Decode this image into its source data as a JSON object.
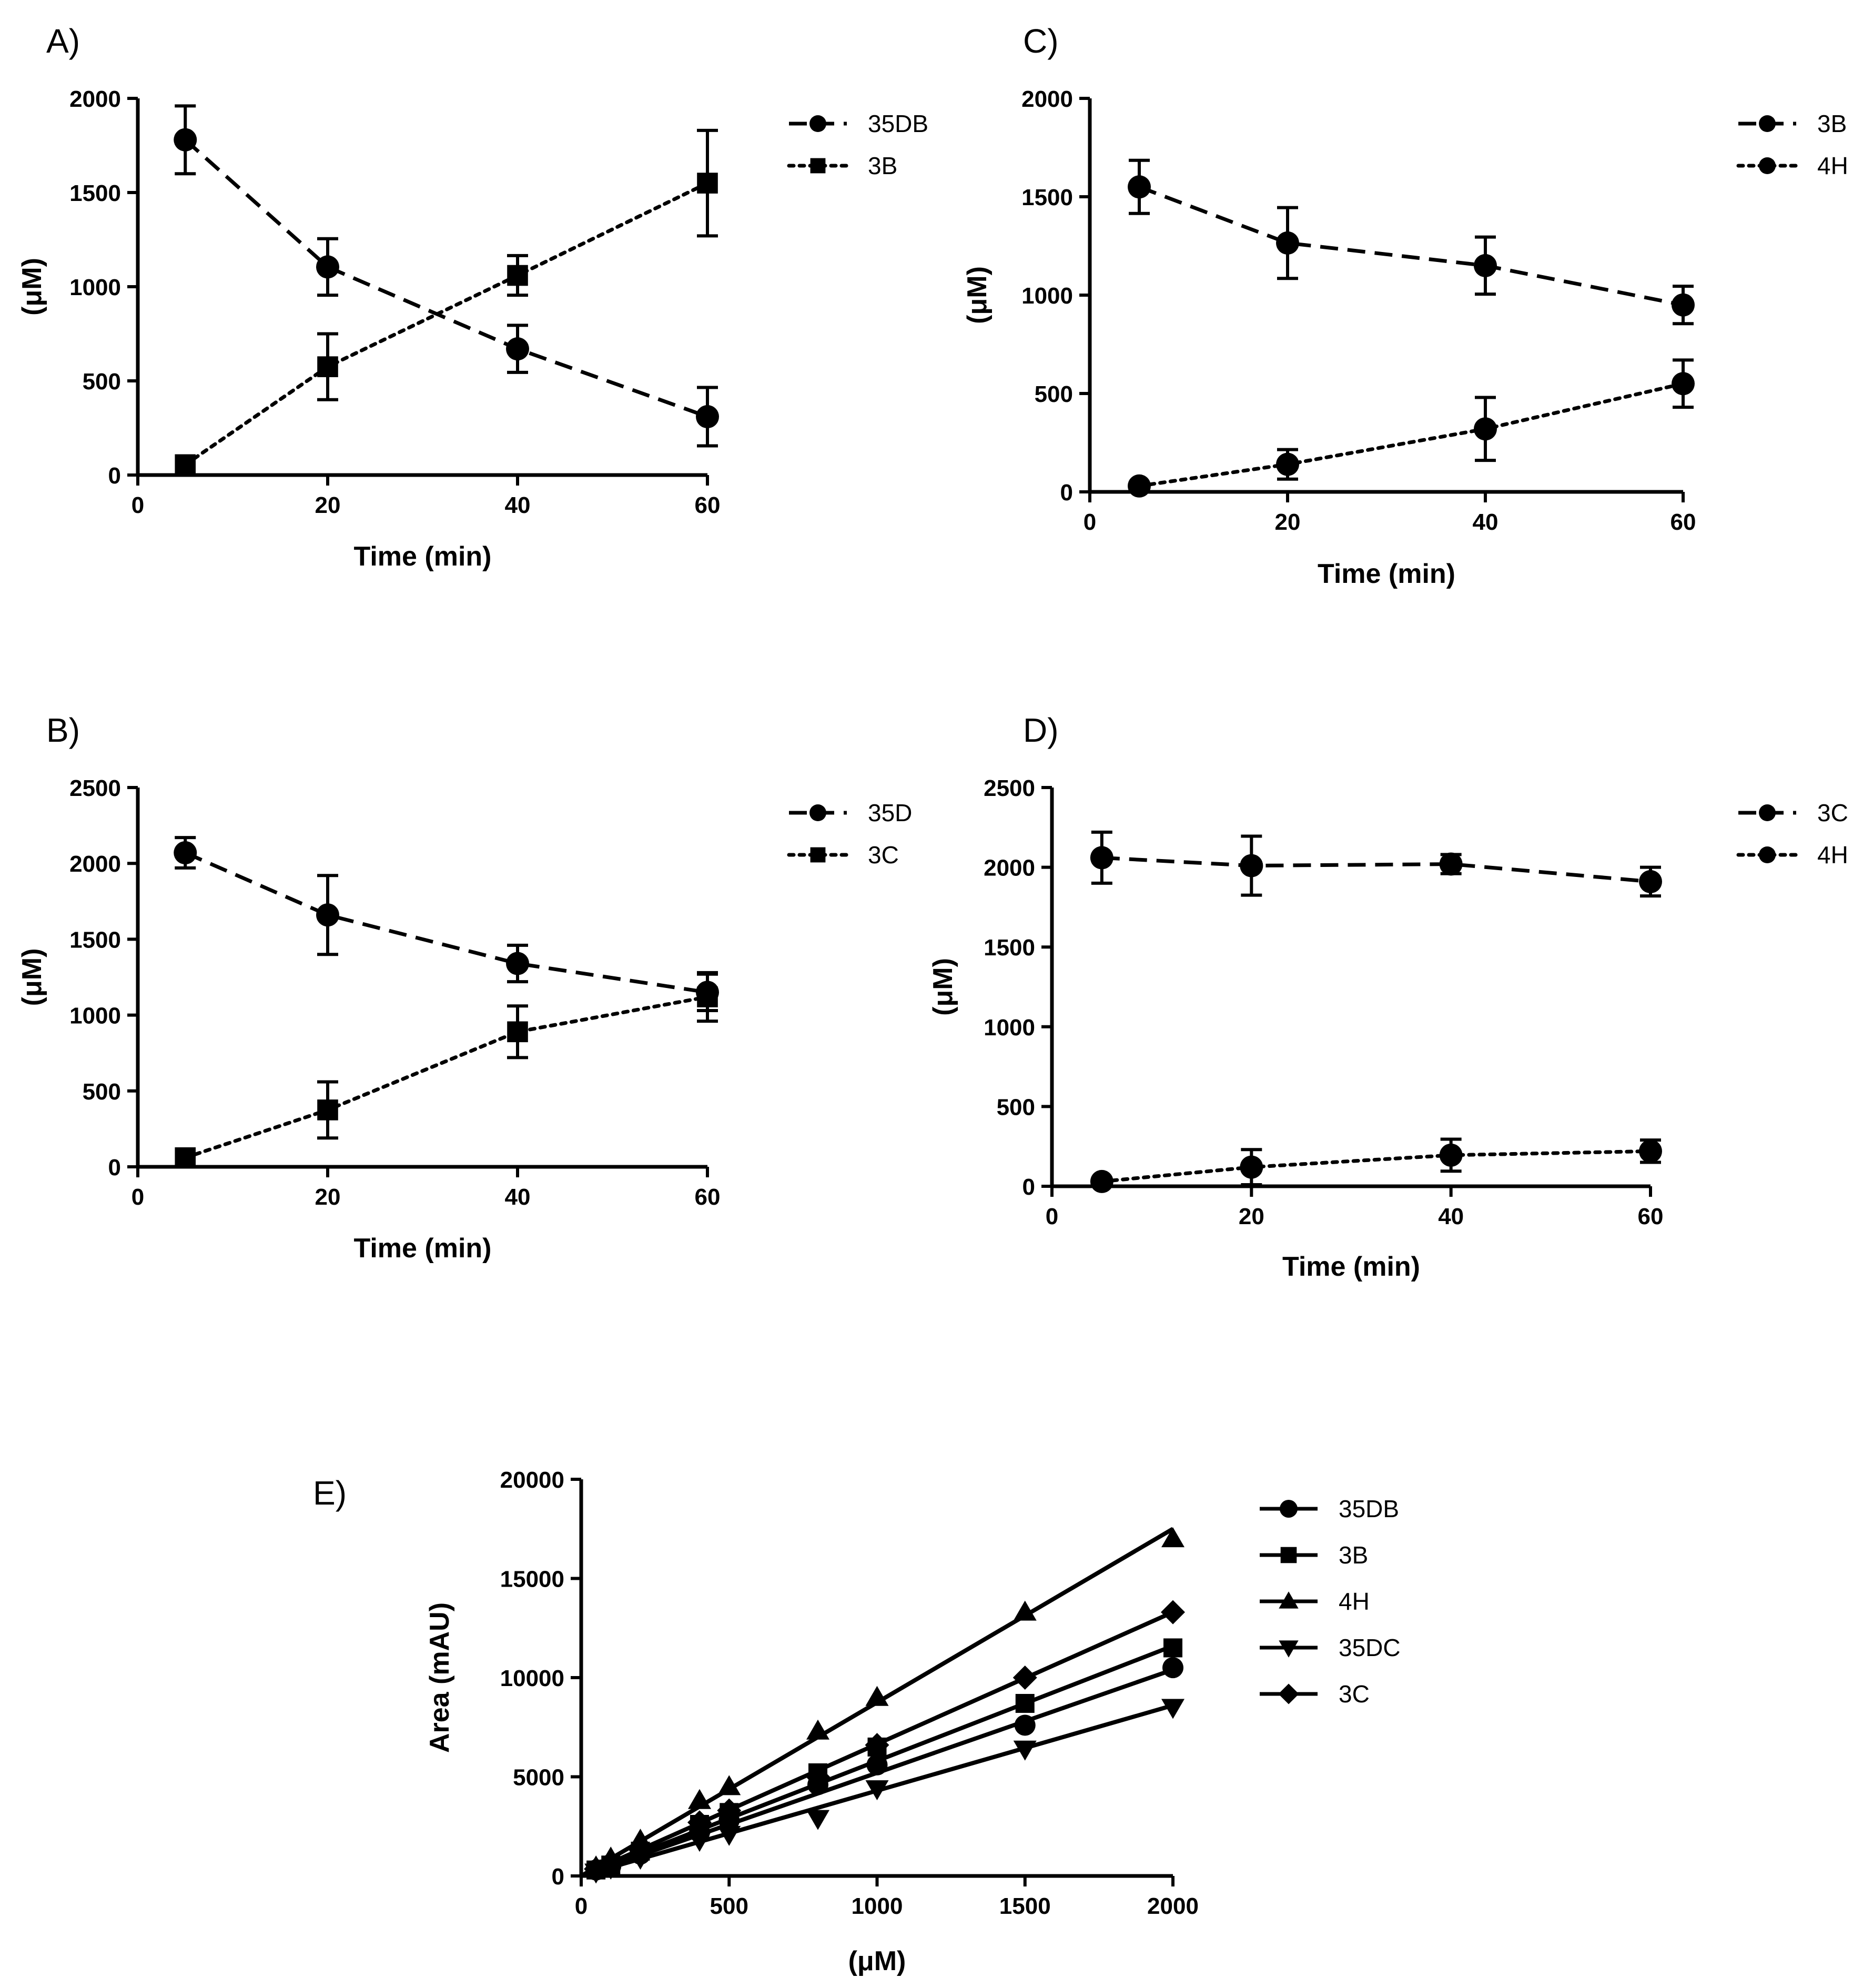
{
  "figure": {
    "panels_order": [
      "A",
      "B",
      "C",
      "D",
      "E"
    ]
  },
  "chart_data": [
    {
      "id": "A",
      "panel_label": "A)",
      "type": "line",
      "xlabel": "Time (min)",
      "ylabel": "(μM)",
      "xlim": [
        0,
        60
      ],
      "ylim": [
        0,
        2000
      ],
      "xticks": [
        0,
        20,
        40,
        60
      ],
      "yticks": [
        0,
        500,
        1000,
        1500,
        2000
      ],
      "legend_position": "right",
      "series": [
        {
          "name": "35DB",
          "marker": "circle",
          "line_style": "dashed",
          "x": [
            5,
            20,
            40,
            60
          ],
          "y": [
            1780,
            1105,
            670,
            310
          ],
          "err": [
            180,
            150,
            125,
            155
          ]
        },
        {
          "name": "3B",
          "marker": "square",
          "line_style": "dotted",
          "x": [
            5,
            20,
            40,
            60
          ],
          "y": [
            55,
            575,
            1060,
            1550
          ],
          "err": [
            0,
            175,
            105,
            280
          ]
        }
      ]
    },
    {
      "id": "B",
      "panel_label": "B)",
      "type": "line",
      "xlabel": "Time (min)",
      "ylabel": "(μM)",
      "xlim": [
        0,
        60
      ],
      "ylim": [
        0,
        2500
      ],
      "xticks": [
        0,
        20,
        40,
        60
      ],
      "yticks": [
        0,
        500,
        1000,
        1500,
        2000,
        2500
      ],
      "legend_position": "right",
      "series": [
        {
          "name": "35D",
          "marker": "circle",
          "line_style": "dashed",
          "x": [
            5,
            20,
            40,
            60
          ],
          "y": [
            2070,
            1660,
            1340,
            1150
          ],
          "err": [
            100,
            260,
            120,
            120
          ]
        },
        {
          "name": "3C",
          "marker": "square",
          "line_style": "dotted",
          "x": [
            5,
            20,
            40,
            60
          ],
          "y": [
            60,
            375,
            890,
            1120
          ],
          "err": [
            0,
            185,
            170,
            160
          ]
        }
      ]
    },
    {
      "id": "C",
      "panel_label": "C)",
      "type": "line",
      "xlabel": "Time (min)",
      "ylabel": "(μM)",
      "xlim": [
        0,
        60
      ],
      "ylim": [
        0,
        2000
      ],
      "xticks": [
        0,
        20,
        40,
        60
      ],
      "yticks": [
        0,
        500,
        1000,
        1500,
        2000
      ],
      "legend_position": "right",
      "series": [
        {
          "name": "3B",
          "marker": "circle",
          "line_style": "dashed",
          "x": [
            5,
            20,
            40,
            60
          ],
          "y": [
            1550,
            1265,
            1150,
            950
          ],
          "err": [
            135,
            180,
            145,
            95
          ]
        },
        {
          "name": "4H",
          "marker": "circle",
          "line_style": "dotted",
          "x": [
            5,
            20,
            40,
            60
          ],
          "y": [
            30,
            140,
            320,
            550
          ],
          "err": [
            0,
            75,
            160,
            120
          ]
        }
      ]
    },
    {
      "id": "D",
      "panel_label": "D)",
      "type": "line",
      "xlabel": "Time (min)",
      "ylabel": "(μM)",
      "xlim": [
        0,
        60
      ],
      "ylim": [
        0,
        2500
      ],
      "xticks": [
        0,
        20,
        40,
        60
      ],
      "yticks": [
        0,
        500,
        1000,
        1500,
        2000,
        2500
      ],
      "legend_position": "right",
      "series": [
        {
          "name": "3C",
          "marker": "circle",
          "line_style": "dashed",
          "x": [
            5,
            20,
            40,
            60
          ],
          "y": [
            2060,
            2010,
            2020,
            1910
          ],
          "err": [
            160,
            185,
            60,
            90
          ]
        },
        {
          "name": "4H",
          "marker": "circle",
          "line_style": "dotted",
          "x": [
            5,
            20,
            40,
            60
          ],
          "y": [
            30,
            120,
            195,
            220
          ],
          "err": [
            0,
            110,
            100,
            70
          ]
        }
      ]
    },
    {
      "id": "E",
      "panel_label": "E)",
      "type": "line",
      "xlabel": "(μM)",
      "ylabel": "Area (mAU)",
      "xlim": [
        0,
        2000
      ],
      "ylim": [
        0,
        20000
      ],
      "xticks": [
        0,
        500,
        1000,
        1500,
        2000
      ],
      "yticks": [
        0,
        5000,
        10000,
        15000,
        20000
      ],
      "legend_position": "right",
      "series": [
        {
          "name": "35DB",
          "marker": "circle",
          "line_style": "solid",
          "x": [
            50,
            100,
            200,
            400,
            500,
            800,
            1000,
            1500,
            2000
          ],
          "y": [
            300,
            500,
            1100,
            2200,
            2800,
            4600,
            5600,
            7600,
            10500
          ],
          "fit": [
            0,
            5.2
          ]
        },
        {
          "name": "3B",
          "marker": "square",
          "line_style": "solid",
          "x": [
            50,
            100,
            200,
            400,
            500,
            800,
            1000,
            1500,
            2000
          ],
          "y": [
            300,
            550,
            1250,
            2600,
            3200,
            5200,
            6500,
            8700,
            11500
          ],
          "fit": [
            0,
            5.8
          ]
        },
        {
          "name": "4H",
          "marker": "triangle-up",
          "line_style": "solid",
          "x": [
            50,
            100,
            200,
            400,
            500,
            800,
            1000,
            1500,
            2000
          ],
          "y": [
            450,
            900,
            1800,
            3800,
            4500,
            7300,
            9000,
            13300,
            17000
          ],
          "fit": [
            0,
            8.75
          ]
        },
        {
          "name": "35DC",
          "marker": "triangle-down",
          "line_style": "solid",
          "x": [
            50,
            100,
            200,
            400,
            500,
            800,
            1000,
            1500,
            2000
          ],
          "y": [
            200,
            400,
            900,
            1800,
            2100,
            2900,
            4400,
            6400,
            8500
          ],
          "fit": [
            0,
            4.3
          ]
        },
        {
          "name": "3C",
          "marker": "diamond",
          "line_style": "solid",
          "x": [
            50,
            100,
            200,
            400,
            500,
            800,
            1000,
            1500,
            2000
          ],
          "y": [
            350,
            700,
            1400,
            2700,
            3300,
            5000,
            6600,
            10000,
            13300
          ],
          "fit": [
            0,
            6.65
          ]
        }
      ]
    }
  ]
}
